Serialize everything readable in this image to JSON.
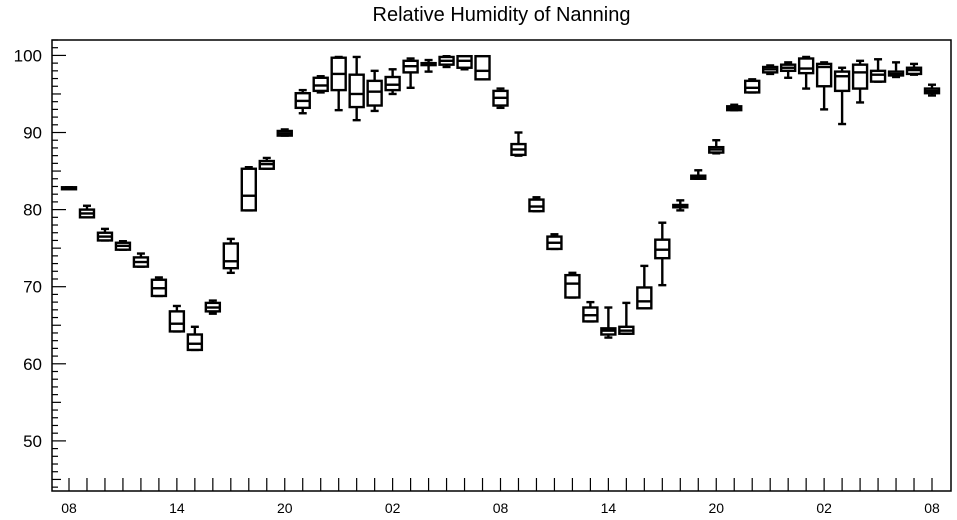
{
  "chart_data": {
    "type": "box",
    "title": "Relative Humidity of Nanning",
    "xlabel": "",
    "ylabel": "",
    "ylim": [
      43.5,
      102
    ],
    "y_ticks": [
      50,
      60,
      70,
      80,
      90,
      100
    ],
    "x_tick_labels": [
      "08",
      "14",
      "20",
      "02",
      "08",
      "14",
      "20",
      "02",
      "08"
    ],
    "x_tick_positions": [
      0,
      6,
      12,
      18,
      24,
      30,
      36,
      42,
      48
    ],
    "grid": false,
    "legend": "none",
    "boxes": [
      {
        "x": 0,
        "whisker_low": 82.7,
        "q1": 82.7,
        "median": 82.8,
        "q3": 82.9,
        "whisker_high": 82.9
      },
      {
        "x": 1,
        "whisker_low": 79.0,
        "q1": 79.0,
        "median": 79.5,
        "q3": 80.0,
        "whisker_high": 80.5
      },
      {
        "x": 2,
        "whisker_low": 76.0,
        "q1": 76.0,
        "median": 76.5,
        "q3": 77.0,
        "whisker_high": 77.5
      },
      {
        "x": 3,
        "whisker_low": 74.8,
        "q1": 74.8,
        "median": 75.3,
        "q3": 75.7,
        "whisker_high": 75.9
      },
      {
        "x": 4,
        "whisker_low": 72.6,
        "q1": 72.6,
        "median": 73.2,
        "q3": 73.8,
        "whisker_high": 74.3
      },
      {
        "x": 5,
        "whisker_low": 68.8,
        "q1": 68.8,
        "median": 69.8,
        "q3": 70.9,
        "whisker_high": 71.2
      },
      {
        "x": 6,
        "whisker_low": 64.2,
        "q1": 64.2,
        "median": 65.2,
        "q3": 66.8,
        "whisker_high": 67.5
      },
      {
        "x": 7,
        "whisker_low": 61.8,
        "q1": 61.8,
        "median": 62.6,
        "q3": 63.8,
        "whisker_high": 64.8
      },
      {
        "x": 8,
        "whisker_low": 66.5,
        "q1": 66.8,
        "median": 67.3,
        "q3": 67.9,
        "whisker_high": 68.2
      },
      {
        "x": 9,
        "whisker_low": 71.8,
        "q1": 72.4,
        "median": 73.3,
        "q3": 75.6,
        "whisker_high": 76.2
      },
      {
        "x": 10,
        "whisker_low": 79.9,
        "q1": 79.9,
        "median": 81.8,
        "q3": 85.3,
        "whisker_high": 85.5
      },
      {
        "x": 11,
        "whisker_low": 85.3,
        "q1": 85.3,
        "median": 85.9,
        "q3": 86.3,
        "whisker_high": 86.7
      },
      {
        "x": 12,
        "whisker_low": 89.6,
        "q1": 89.6,
        "median": 89.9,
        "q3": 90.2,
        "whisker_high": 90.4
      },
      {
        "x": 13,
        "whisker_low": 92.5,
        "q1": 93.2,
        "median": 94.1,
        "q3": 95.1,
        "whisker_high": 95.5
      },
      {
        "x": 14,
        "whisker_low": 95.2,
        "q1": 95.4,
        "median": 96.1,
        "q3": 97.1,
        "whisker_high": 97.3
      },
      {
        "x": 15,
        "whisker_low": 92.9,
        "q1": 95.5,
        "median": 97.6,
        "q3": 99.7,
        "whisker_high": 99.8
      },
      {
        "x": 16,
        "whisker_low": 91.6,
        "q1": 93.3,
        "median": 95.0,
        "q3": 97.5,
        "whisker_high": 99.8
      },
      {
        "x": 17,
        "whisker_low": 92.8,
        "q1": 93.5,
        "median": 95.3,
        "q3": 96.7,
        "whisker_high": 98.0
      },
      {
        "x": 18,
        "whisker_low": 95.0,
        "q1": 95.5,
        "median": 96.2,
        "q3": 97.2,
        "whisker_high": 98.2
      },
      {
        "x": 19,
        "whisker_low": 95.8,
        "q1": 97.8,
        "median": 98.6,
        "q3": 99.3,
        "whisker_high": 99.6
      },
      {
        "x": 20,
        "whisker_low": 97.9,
        "q1": 98.8,
        "median": 98.9,
        "q3": 99.0,
        "whisker_high": 99.4
      },
      {
        "x": 21,
        "whisker_low": 98.5,
        "q1": 98.8,
        "median": 99.3,
        "q3": 99.8,
        "whisker_high": 99.9
      },
      {
        "x": 22,
        "whisker_low": 98.2,
        "q1": 98.4,
        "median": 99.3,
        "q3": 99.9,
        "whisker_high": 99.9
      },
      {
        "x": 23,
        "whisker_low": 96.9,
        "q1": 96.9,
        "median": 98.0,
        "q3": 99.9,
        "whisker_high": 99.9
      },
      {
        "x": 24,
        "whisker_low": 93.2,
        "q1": 93.5,
        "median": 94.5,
        "q3": 95.4,
        "whisker_high": 95.7
      },
      {
        "x": 25,
        "whisker_low": 87.0,
        "q1": 87.1,
        "median": 87.8,
        "q3": 88.5,
        "whisker_high": 90.0
      },
      {
        "x": 26,
        "whisker_low": 79.8,
        "q1": 79.8,
        "median": 80.4,
        "q3": 81.3,
        "whisker_high": 81.6
      },
      {
        "x": 27,
        "whisker_low": 74.9,
        "q1": 74.9,
        "median": 75.7,
        "q3": 76.5,
        "whisker_high": 76.8
      },
      {
        "x": 28,
        "whisker_low": 68.6,
        "q1": 68.6,
        "median": 70.4,
        "q3": 71.5,
        "whisker_high": 71.8
      },
      {
        "x": 29,
        "whisker_low": 65.5,
        "q1": 65.5,
        "median": 66.3,
        "q3": 67.3,
        "whisker_high": 68.0
      },
      {
        "x": 30,
        "whisker_low": 63.4,
        "q1": 63.8,
        "median": 64.3,
        "q3": 64.6,
        "whisker_high": 67.3
      },
      {
        "x": 31,
        "whisker_low": 63.9,
        "q1": 63.9,
        "median": 64.3,
        "q3": 64.8,
        "whisker_high": 67.9
      },
      {
        "x": 32,
        "whisker_low": 67.2,
        "q1": 67.2,
        "median": 68.1,
        "q3": 69.9,
        "whisker_high": 72.7
      },
      {
        "x": 33,
        "whisker_low": 70.2,
        "q1": 73.7,
        "median": 74.8,
        "q3": 76.1,
        "whisker_high": 78.3
      },
      {
        "x": 34,
        "whisker_low": 79.9,
        "q1": 80.3,
        "median": 80.4,
        "q3": 80.6,
        "whisker_high": 81.2
      },
      {
        "x": 35,
        "whisker_low": 84.0,
        "q1": 84.0,
        "median": 84.2,
        "q3": 84.4,
        "whisker_high": 85.1
      },
      {
        "x": 36,
        "whisker_low": 87.3,
        "q1": 87.4,
        "median": 87.8,
        "q3": 88.1,
        "whisker_high": 89.0
      },
      {
        "x": 37,
        "whisker_low": 92.9,
        "q1": 92.9,
        "median": 93.1,
        "q3": 93.4,
        "whisker_high": 93.6
      },
      {
        "x": 38,
        "whisker_low": 95.2,
        "q1": 95.2,
        "median": 95.8,
        "q3": 96.7,
        "whisker_high": 96.9
      },
      {
        "x": 39,
        "whisker_low": 97.6,
        "q1": 97.8,
        "median": 98.2,
        "q3": 98.5,
        "whisker_high": 98.7
      },
      {
        "x": 40,
        "whisker_low": 97.1,
        "q1": 98.0,
        "median": 98.4,
        "q3": 98.8,
        "whisker_high": 99.1
      },
      {
        "x": 41,
        "whisker_low": 95.7,
        "q1": 97.7,
        "median": 98.3,
        "q3": 99.6,
        "whisker_high": 99.8
      },
      {
        "x": 42,
        "whisker_low": 93.0,
        "q1": 96.0,
        "median": 98.5,
        "q3": 98.9,
        "whisker_high": 99.1
      },
      {
        "x": 43,
        "whisker_low": 91.1,
        "q1": 95.4,
        "median": 97.3,
        "q3": 97.9,
        "whisker_high": 98.4
      },
      {
        "x": 44,
        "whisker_low": 93.9,
        "q1": 95.7,
        "median": 97.8,
        "q3": 98.8,
        "whisker_high": 99.3
      },
      {
        "x": 45,
        "whisker_low": 96.6,
        "q1": 96.6,
        "median": 97.5,
        "q3": 98.0,
        "whisker_high": 99.5
      },
      {
        "x": 46,
        "whisker_low": 97.2,
        "q1": 97.4,
        "median": 97.6,
        "q3": 97.9,
        "whisker_high": 99.1
      },
      {
        "x": 47,
        "whisker_low": 97.5,
        "q1": 97.6,
        "median": 98.1,
        "q3": 98.4,
        "whisker_high": 98.9
      },
      {
        "x": 48,
        "whisker_low": 94.8,
        "q1": 95.1,
        "median": 95.4,
        "q3": 95.7,
        "whisker_high": 96.2
      }
    ]
  }
}
